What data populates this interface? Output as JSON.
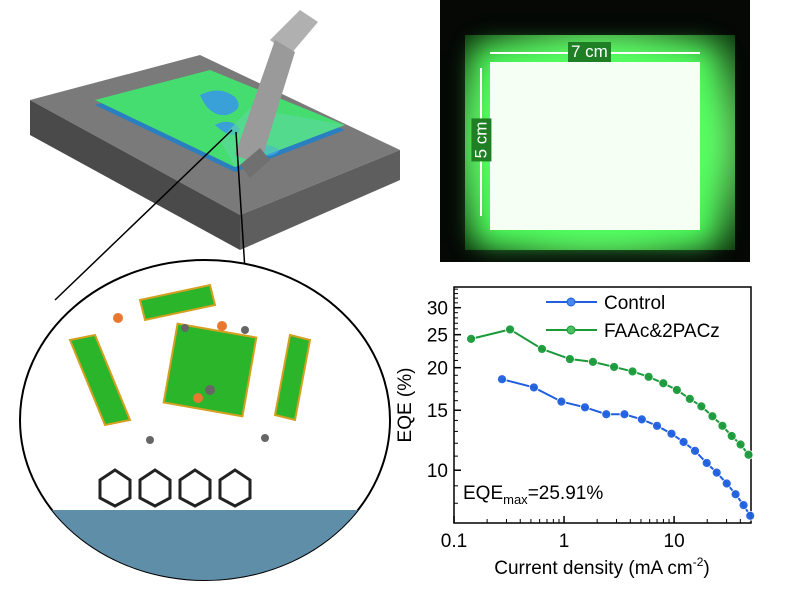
{
  "photo": {
    "width_label": "7 cm",
    "height_label": "5 cm"
  },
  "colors": {
    "control": "#1f5fe0",
    "treated": "#1a9a3a",
    "film": "#3fe07a",
    "substrate": "#555555"
  },
  "chart_data": {
    "type": "line",
    "xlabel": "Current density (mA cm",
    "xlabel_sup": "-2",
    "xlabel_end": ")",
    "ylabel": "EQE (%)",
    "xscale": "log",
    "yscale": "log",
    "xlim": [
      0.1,
      50
    ],
    "ylim": [
      7,
      34.5
    ],
    "xticks": [
      {
        "v": 0.1,
        "label": "0.1"
      },
      {
        "v": 1,
        "label": "1"
      },
      {
        "v": 10,
        "label": "10"
      }
    ],
    "yticks": [
      {
        "v": 10,
        "label": "10"
      },
      {
        "v": 15,
        "label": "15"
      },
      {
        "v": 20,
        "label": "20"
      },
      {
        "v": 25,
        "label": "25"
      },
      {
        "v": 30,
        "label": "30"
      }
    ],
    "legend": "top-right",
    "annotation": {
      "main": "EQE",
      "sub": "max",
      "rest": "=25.91%"
    },
    "series": [
      {
        "name": "Control",
        "color": "#1f5fe0",
        "x": [
          0.273,
          0.532,
          0.946,
          1.55,
          2.42,
          3.54,
          5.09,
          7.0,
          9.47,
          12.2,
          15.5,
          19.8,
          24.4,
          30.1,
          36.2,
          42.8,
          49.2
        ],
        "y": [
          18.5,
          17.5,
          15.9,
          15.3,
          14.6,
          14.6,
          14.1,
          13.5,
          12.8,
          12.1,
          11.4,
          10.5,
          9.84,
          9.14,
          8.5,
          7.9,
          7.35
        ]
      },
      {
        "name": "FAAc&2PACz",
        "color": "#1a9a3a",
        "x": [
          0.143,
          0.323,
          0.63,
          1.13,
          1.83,
          2.85,
          4.19,
          5.87,
          7.98,
          10.6,
          13.9,
          17.7,
          22.3,
          27.5,
          33.4,
          40.2,
          47.5
        ],
        "y": [
          24.3,
          25.9,
          22.7,
          21.2,
          20.8,
          20.1,
          19.5,
          18.8,
          18.0,
          17.2,
          16.2,
          15.4,
          14.4,
          13.5,
          12.6,
          11.9,
          11.1
        ]
      }
    ]
  }
}
